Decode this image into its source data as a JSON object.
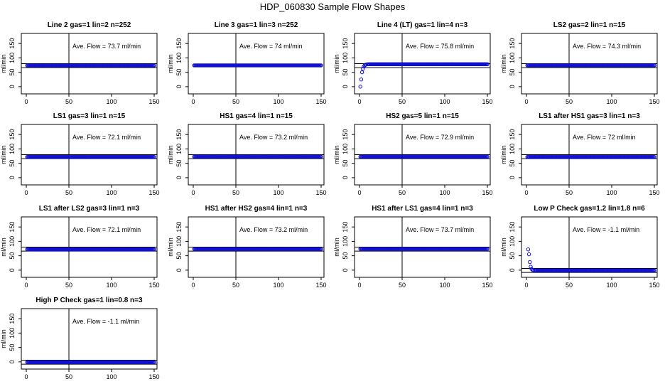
{
  "figure_title": "HDP_060830  Sample Flow Shapes",
  "chart_data": [
    {
      "type": "scatter",
      "title": "Line 2 gas=1 lin=2 n=252",
      "ylabel": "ml/min",
      "xlim": [
        0,
        150
      ],
      "ylim": [
        0,
        150
      ],
      "xticks": [
        0,
        50,
        100,
        150
      ],
      "yticks": [
        0,
        50,
        100,
        150
      ],
      "annotation": "Ave. Flow =  73.7  ml/min",
      "vline": 50,
      "hlines": [
        66,
        80
      ],
      "series": [
        {
          "x": [
            1,
            150
          ],
          "y": [
            73.7,
            73.7
          ],
          "fill": true,
          "step": 1
        }
      ]
    },
    {
      "type": "scatter",
      "title": "Line 3 gas=1 lin=3 n=252",
      "ylabel": "ml/min",
      "xlim": [
        0,
        150
      ],
      "ylim": [
        0,
        150
      ],
      "xticks": [
        0,
        50,
        100,
        150
      ],
      "yticks": [
        0,
        50,
        100,
        150
      ],
      "annotation": "Ave. Flow =  74  ml/min",
      "vline": 50,
      "hlines": [],
      "series": [
        {
          "x": [
            1,
            150
          ],
          "y": [
            74,
            74
          ],
          "fill": true,
          "step": 1
        }
      ]
    },
    {
      "type": "scatter",
      "title": "Line 4 (LT) gas=1 lin=4 n=3",
      "ylabel": "ml/min",
      "xlim": [
        0,
        150
      ],
      "ylim": [
        0,
        150
      ],
      "xticks": [
        0,
        50,
        100,
        150
      ],
      "yticks": [
        0,
        50,
        100,
        150
      ],
      "annotation": "Ave. Flow =  75.8  ml/min",
      "vline": 50,
      "hlines": [
        66,
        80
      ],
      "series": [
        {
          "x": [
            1,
            2,
            3,
            4,
            5,
            6,
            7,
            8,
            10,
            150
          ],
          "y": [
            0,
            25,
            50,
            62,
            70,
            74,
            76,
            77,
            78,
            78
          ],
          "fill": false,
          "step": 1
        }
      ]
    },
    {
      "type": "scatter",
      "title": "LS2 gas=2 lin=1 n=15",
      "ylabel": "ml/min",
      "xlim": [
        0,
        150
      ],
      "ylim": [
        0,
        150
      ],
      "xticks": [
        0,
        50,
        100,
        150
      ],
      "yticks": [
        0,
        50,
        100,
        150
      ],
      "annotation": "Ave. Flow =  74.3  ml/min",
      "vline": 50,
      "hlines": [
        66,
        80
      ],
      "series": [
        {
          "x": [
            1,
            150
          ],
          "y": [
            74.3,
            74.3
          ],
          "fill": true,
          "step": 1
        }
      ]
    },
    {
      "type": "scatter",
      "title": "LS1 gas=3 lin=1 n=15",
      "ylabel": "ml/min",
      "xlim": [
        0,
        150
      ],
      "ylim": [
        0,
        150
      ],
      "xticks": [
        0,
        50,
        100,
        150
      ],
      "yticks": [
        0,
        50,
        100,
        150
      ],
      "annotation": "Ave. Flow =  72.1  ml/min",
      "vline": 50,
      "hlines": [
        66,
        80
      ],
      "series": [
        {
          "x": [
            1,
            150
          ],
          "y": [
            72.1,
            72.1
          ],
          "fill": true,
          "step": 1
        }
      ]
    },
    {
      "type": "scatter",
      "title": "HS1 gas=4 lin=1 n=15",
      "ylabel": "ml/min",
      "xlim": [
        0,
        150
      ],
      "ylim": [
        0,
        150
      ],
      "xticks": [
        0,
        50,
        100,
        150
      ],
      "yticks": [
        0,
        50,
        100,
        150
      ],
      "annotation": "Ave. Flow =  73.2  ml/min",
      "vline": 50,
      "hlines": [
        66,
        80
      ],
      "series": [
        {
          "x": [
            1,
            150
          ],
          "y": [
            73.2,
            73.2
          ],
          "fill": true,
          "step": 1
        }
      ]
    },
    {
      "type": "scatter",
      "title": "HS2 gas=5 lin=1 n=15",
      "ylabel": "ml/min",
      "xlim": [
        0,
        150
      ],
      "ylim": [
        0,
        150
      ],
      "xticks": [
        0,
        50,
        100,
        150
      ],
      "yticks": [
        0,
        50,
        100,
        150
      ],
      "annotation": "Ave. Flow =  72.9  ml/min",
      "vline": 50,
      "hlines": [
        66,
        80
      ],
      "series": [
        {
          "x": [
            1,
            150
          ],
          "y": [
            72.9,
            72.9
          ],
          "fill": true,
          "step": 1
        }
      ]
    },
    {
      "type": "scatter",
      "title": "LS1 after HS1 gas=3 lin=1 n=3",
      "ylabel": "ml/min",
      "xlim": [
        0,
        150
      ],
      "ylim": [
        0,
        150
      ],
      "xticks": [
        0,
        50,
        100,
        150
      ],
      "yticks": [
        0,
        50,
        100,
        150
      ],
      "annotation": "Ave. Flow =  72  ml/min",
      "vline": 50,
      "hlines": [
        66,
        80
      ],
      "series": [
        {
          "x": [
            1,
            150
          ],
          "y": [
            72,
            72
          ],
          "fill": true,
          "step": 1
        }
      ]
    },
    {
      "type": "scatter",
      "title": "LS1 after LS2 gas=3 lin=1 n=3",
      "ylabel": "ml/min",
      "xlim": [
        0,
        150
      ],
      "ylim": [
        0,
        150
      ],
      "xticks": [
        0,
        50,
        100,
        150
      ],
      "yticks": [
        0,
        50,
        100,
        150
      ],
      "annotation": "Ave. Flow =  72.1  ml/min",
      "vline": 50,
      "hlines": [
        66,
        80
      ],
      "series": [
        {
          "x": [
            1,
            150
          ],
          "y": [
            72.1,
            72.1
          ],
          "fill": true,
          "step": 1
        }
      ]
    },
    {
      "type": "scatter",
      "title": "HS1 after HS2 gas=4 lin=1 n=3",
      "ylabel": "ml/min",
      "xlim": [
        0,
        150
      ],
      "ylim": [
        0,
        150
      ],
      "xticks": [
        0,
        50,
        100,
        150
      ],
      "yticks": [
        0,
        50,
        100,
        150
      ],
      "annotation": "Ave. Flow =  73.2  ml/min",
      "vline": 50,
      "hlines": [
        66,
        80
      ],
      "series": [
        {
          "x": [
            1,
            150
          ],
          "y": [
            73.2,
            73.2
          ],
          "fill": true,
          "step": 1
        }
      ]
    },
    {
      "type": "scatter",
      "title": "HS1 after LS1 gas=4 lin=1 n=3",
      "ylabel": "ml/min",
      "xlim": [
        0,
        150
      ],
      "ylim": [
        0,
        150
      ],
      "xticks": [
        0,
        50,
        100,
        150
      ],
      "yticks": [
        0,
        50,
        100,
        150
      ],
      "annotation": "Ave. Flow =  73.7  ml/min",
      "vline": 50,
      "hlines": [
        66,
        80
      ],
      "series": [
        {
          "x": [
            1,
            150
          ],
          "y": [
            73.7,
            73.7
          ],
          "fill": true,
          "step": 1
        }
      ]
    },
    {
      "type": "scatter",
      "title": "Low P Check gas=1.2 lin=1.8 n=6",
      "ylabel": "ml/min",
      "xlim": [
        0,
        150
      ],
      "ylim": [
        0,
        150
      ],
      "xticks": [
        0,
        50,
        100,
        150
      ],
      "yticks": [
        0,
        50,
        100,
        150
      ],
      "annotation": "Ave. Flow =  -1.1  ml/min",
      "vline": 50,
      "hlines": [
        -8,
        6
      ],
      "series": [
        {
          "x": [
            2,
            3,
            4,
            5,
            6,
            7,
            8,
            10,
            150
          ],
          "y": [
            72,
            55,
            28,
            12,
            4,
            1,
            0,
            -1,
            -1
          ],
          "fill": false,
          "step": 1
        }
      ]
    },
    {
      "type": "scatter",
      "title": "High P Check gas=1 lin=0.8 n=3",
      "ylabel": "ml/min",
      "xlim": [
        0,
        150
      ],
      "ylim": [
        0,
        150
      ],
      "xticks": [
        0,
        50,
        100,
        150
      ],
      "yticks": [
        0,
        50,
        100,
        150
      ],
      "annotation": "Ave. Flow =  -1.1  ml/min",
      "vline": 50,
      "hlines": [
        -8,
        6
      ],
      "series": [
        {
          "x": [
            1,
            150
          ],
          "y": [
            -1.1,
            -1.1
          ],
          "fill": true,
          "step": 1
        }
      ]
    }
  ],
  "colors": {
    "points": "#1010d0",
    "axes": "#000000"
  }
}
